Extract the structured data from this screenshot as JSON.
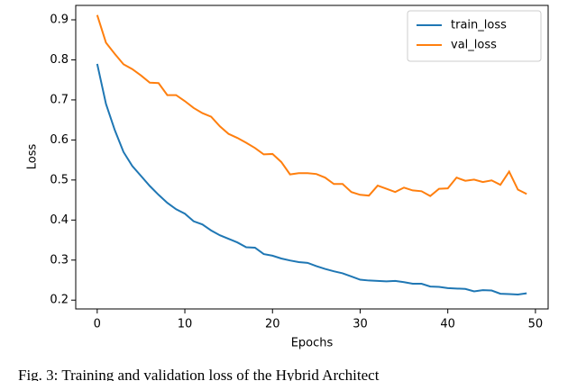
{
  "chart_data": {
    "type": "line",
    "xlabel": "Epochs",
    "ylabel": "Loss",
    "caption": "Fig. 3: Training and validation loss of the Hybrid Architect",
    "x": [
      0,
      1,
      2,
      3,
      4,
      5,
      6,
      7,
      8,
      9,
      10,
      11,
      12,
      13,
      14,
      15,
      16,
      17,
      18,
      19,
      20,
      21,
      22,
      23,
      24,
      25,
      26,
      27,
      28,
      29,
      30,
      31,
      32,
      33,
      34,
      35,
      36,
      37,
      38,
      39,
      40,
      41,
      42,
      43,
      44,
      45,
      46,
      47,
      48,
      49
    ],
    "series": [
      {
        "name": "train_loss",
        "color": "#1f77b4",
        "values": [
          0.79,
          0.69,
          0.625,
          0.57,
          0.535,
          0.51,
          0.485,
          0.463,
          0.443,
          0.427,
          0.416,
          0.397,
          0.389,
          0.374,
          0.362,
          0.353,
          0.344,
          0.332,
          0.331,
          0.315,
          0.311,
          0.304,
          0.299,
          0.295,
          0.293,
          0.285,
          0.278,
          0.272,
          0.267,
          0.259,
          0.251,
          0.249,
          0.248,
          0.247,
          0.248,
          0.245,
          0.241,
          0.241,
          0.234,
          0.233,
          0.23,
          0.229,
          0.228,
          0.222,
          0.225,
          0.224,
          0.216,
          0.215,
          0.214,
          0.217
        ]
      },
      {
        "name": "val_loss",
        "color": "#ff7f0e",
        "values": [
          0.912,
          0.843,
          0.815,
          0.789,
          0.777,
          0.761,
          0.743,
          0.742,
          0.712,
          0.712,
          0.697,
          0.68,
          0.667,
          0.658,
          0.634,
          0.615,
          0.605,
          0.593,
          0.58,
          0.564,
          0.565,
          0.545,
          0.514,
          0.517,
          0.517,
          0.515,
          0.506,
          0.49,
          0.49,
          0.47,
          0.463,
          0.461,
          0.486,
          0.478,
          0.47,
          0.481,
          0.474,
          0.472,
          0.46,
          0.478,
          0.479,
          0.506,
          0.498,
          0.501,
          0.495,
          0.499,
          0.488,
          0.521,
          0.476,
          0.465
        ]
      }
    ],
    "xlim": [
      -2.45,
      51.45
    ],
    "xticks": [
      0,
      10,
      20,
      30,
      40,
      50
    ],
    "ylim": [
      0.178,
      0.936
    ],
    "yticks": [
      0.2,
      0.3,
      0.4,
      0.5,
      0.6,
      0.7,
      0.8,
      0.9
    ],
    "legend": "upper right",
    "grid": false
  }
}
